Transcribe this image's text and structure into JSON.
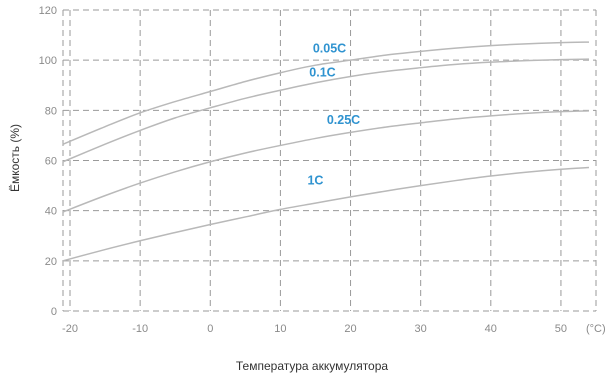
{
  "chart_data": {
    "type": "line",
    "xlabel": "Температура аккумулятора",
    "ylabel": "Ёмкость (%)",
    "x_unit_label": "(°C)",
    "xlim": [
      -21,
      55
    ],
    "ylim": [
      0,
      120
    ],
    "x_ticks": [
      -20,
      -10,
      0,
      10,
      20,
      30,
      40,
      50
    ],
    "y_ticks": [
      0,
      20,
      40,
      60,
      80,
      100,
      120
    ],
    "grid": true,
    "label_color": "#2f93d0",
    "curve_color": "#b9b9b9",
    "series": [
      {
        "name": "0.05C",
        "label_at": [
          17,
          103
        ],
        "x": [
          -21,
          -15,
          -10,
          -5,
          0,
          5,
          10,
          15,
          20,
          25,
          30,
          35,
          40,
          45,
          50,
          54
        ],
        "y": [
          66.5,
          73.5,
          79,
          83.5,
          87.5,
          91.5,
          95,
          98,
          100,
          102,
          103.5,
          104.8,
          105.8,
          106.5,
          107,
          107.2
        ]
      },
      {
        "name": "0.1C",
        "label_at": [
          16,
          93.5
        ],
        "x": [
          -21,
          -15,
          -10,
          -5,
          0,
          5,
          10,
          15,
          20,
          25,
          30,
          35,
          40,
          45,
          50,
          54
        ],
        "y": [
          59.5,
          66.5,
          72,
          77,
          81,
          84.8,
          88,
          91,
          93.5,
          95.5,
          97,
          98.3,
          99.2,
          99.8,
          100.2,
          100.4
        ]
      },
      {
        "name": "0.25C",
        "label_at": [
          19,
          74.5
        ],
        "x": [
          -21,
          -15,
          -10,
          -5,
          0,
          5,
          10,
          15,
          20,
          25,
          30,
          35,
          40,
          45,
          50,
          54
        ],
        "y": [
          39.5,
          46,
          51,
          55.5,
          59.5,
          63,
          66,
          68.8,
          71.2,
          73.3,
          75,
          76.6,
          77.8,
          78.8,
          79.5,
          79.8
        ]
      },
      {
        "name": "1C",
        "label_at": [
          15,
          50.5
        ],
        "x": [
          -21,
          -15,
          -10,
          -5,
          0,
          5,
          10,
          15,
          20,
          25,
          30,
          35,
          40,
          45,
          50,
          54
        ],
        "y": [
          20,
          24.5,
          28,
          31.3,
          34.5,
          37.5,
          40.5,
          43,
          45.5,
          47.8,
          50,
          52,
          53.8,
          55.3,
          56.5,
          57.2
        ]
      }
    ]
  }
}
